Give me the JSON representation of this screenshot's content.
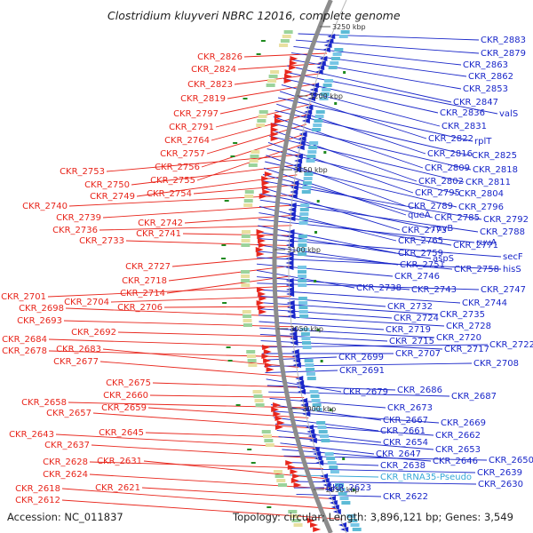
{
  "title": "Clostridium kluyveri NBRC 12016, complete genome",
  "accession": "Accession: NC_011837",
  "summary": "Topology: circular; Length: 3,896,121 bp; Genes: 3,549",
  "colors": {
    "left_label": "#e8261c",
    "right_label": "#1a27c9",
    "pseudo_label": "#38a8d8",
    "backbone": "#8c8c8c",
    "forward_arrow": "#e8261c",
    "reverse_arrow": "#1a27c9",
    "rna_marker": "#1f8a1f"
  },
  "ticks": [
    {
      "label": "3250 kbp"
    },
    {
      "label": "3200 kbp"
    },
    {
      "label": "3150 kbp"
    },
    {
      "label": "3100 kbp"
    },
    {
      "label": "3050 kbp"
    },
    {
      "label": "3000 kbp"
    },
    {
      "label": "2950 kbp"
    }
  ],
  "left_labels": [
    "CKR_2826",
    "CKR_2824",
    "CKR_2823",
    "CKR_2819",
    "CKR_2797",
    "CKR_2791",
    "CKR_2764",
    "CKR_2757",
    "CKR_2756",
    "CKR_2755",
    "CKR_2753",
    "CKR_2750",
    "CKR_2749",
    "CKR_2754",
    "CKR_2740",
    "CKR_2739",
    "CKR_2742",
    "CKR_2736",
    "CKR_2741",
    "CKR_2733",
    "CKR_2727",
    "CKR_2718",
    "CKR_2714",
    "CKR_2701",
    "CKR_2704",
    "CKR_2706",
    "CKR_2698",
    "CKR_2693",
    "CKR_2692",
    "CKR_2684",
    "CKR_2678",
    "CKR_2683",
    "CKR_2677",
    "CKR_2675",
    "CKR_2660",
    "CKR_2658",
    "CKR_2659",
    "CKR_2657",
    "CKR_2645",
    "CKR_2643",
    "CKR_2637",
    "CKR_2628",
    "CKR_2631",
    "CKR_2624",
    "CKR_2621",
    "CKR_2618",
    "CKR_2612"
  ],
  "right_labels": [
    "CKR_2883",
    "CKR_2879",
    "CKR_2863",
    "CKR_2862",
    "CKR_2853",
    "CKR_2847",
    "valS",
    "CKR_2836",
    "CKR_2831",
    "CKR_2822",
    "rplT",
    "CKR_2816",
    "CKR_2825",
    "CKR_2809",
    "CKR_2818",
    "CKR_2802",
    "CKR_2811",
    "CKR_2795",
    "CKR_2804",
    "CKR_2789",
    "CKR_2796",
    "queA",
    "CKR_2785",
    "CKR_2792",
    "CKR_2773",
    "ruvB",
    "CKR_2788",
    "CKR_2765",
    "CKR_2771",
    "ruvA",
    "CKR_2759",
    "aspS",
    "secF",
    "CKR_2751",
    "CKR_2758",
    "hisS",
    "CKR_2746",
    "CKR_2738",
    "CKR_2743",
    "CKR_2747",
    "CKR_2744",
    "CKR_2732",
    "CKR_2735",
    "CKR_2724",
    "CKR_2728",
    "CKR_2719",
    "CKR_2720",
    "CKR_2715",
    "CKR_2717",
    "CKR_2722",
    "CKR_2707",
    "CKR_2699",
    "CKR_2708",
    "CKR_2691",
    "CKR_2679",
    "CKR_2686",
    "CKR_2687",
    "CKR_2673",
    "CKR_2667",
    "CKR_2669",
    "CKR_2661",
    "CKR_2662",
    "CKR_2654",
    "CKR_2653",
    "CKR_2647",
    "CKR_2646",
    "CKR_2650",
    "CKR_2638",
    "CKR_2639",
    "CKR_tRNA35-Pseudo",
    "CKR_2630",
    "CKR_2623",
    "CKR_2622"
  ]
}
